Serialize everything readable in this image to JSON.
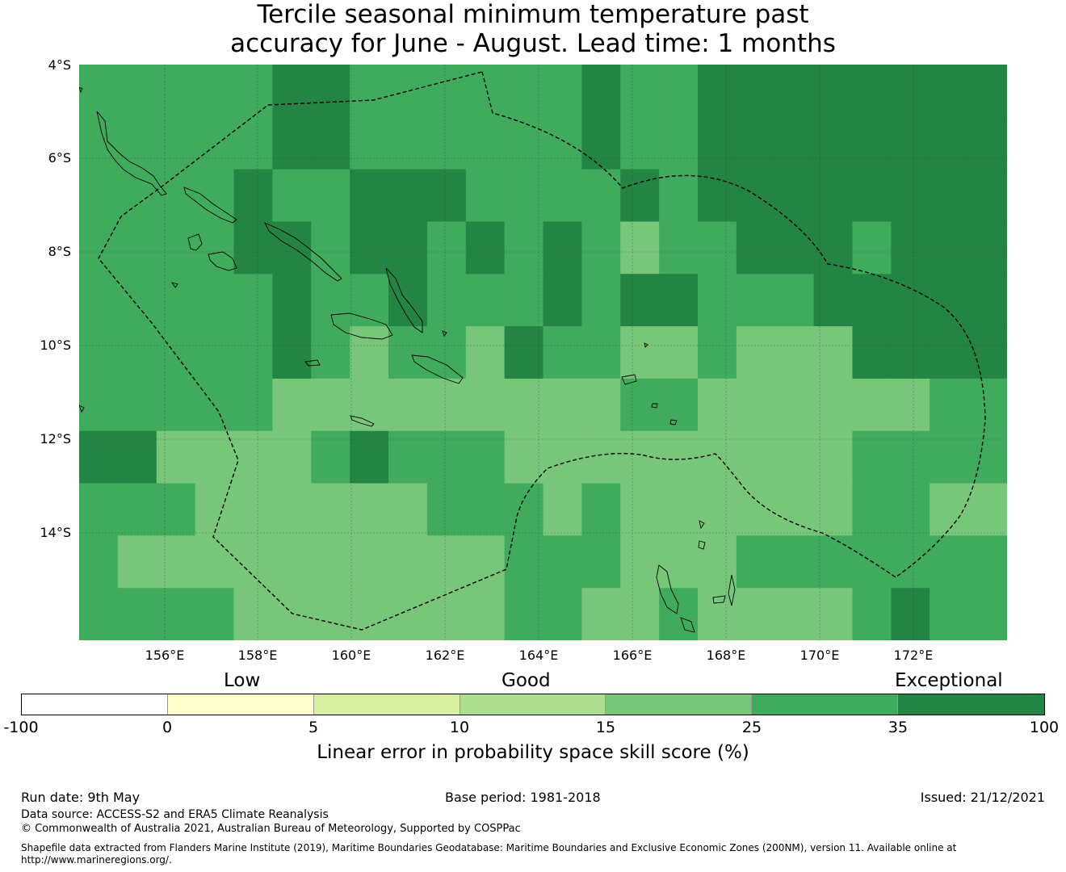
{
  "title": {
    "line1": "Tercile seasonal minimum temperature past",
    "line2": "accuracy for June - August. Lead time: 1 months"
  },
  "map": {
    "lat_labels": [
      "4°S",
      "6°S",
      "8°S",
      "10°S",
      "12°S",
      "14°S"
    ],
    "lon_labels": [
      "156°E",
      "158°E",
      "160°E",
      "162°E",
      "164°E",
      "166°E",
      "168°E",
      "170°E",
      "172°E"
    ],
    "extent": {
      "lon_min": 154.2,
      "lon_max": 174.0,
      "lat_min": -16.3,
      "lat_max": -4.0
    },
    "palette": {
      "1": "#78c679",
      "2": "#41ab5d",
      "3": "#238443"
    },
    "grid_cols": 24,
    "grid_rows": 11,
    "cells": [
      "222223322222232233333333",
      "222223322222232233333333",
      "222232233322223233333333",
      "222233233232321223332333",
      "222223223222323322233333",
      "222223212213221121113333",
      "222221111111112211111122",
      "331111232221111111112222",
      "222111111222121111112211",
      "211111111112221112222222",
      "222211111112211211112322"
    ]
  },
  "colorbar": {
    "categories": [
      "Low",
      "Good",
      "Exceptional"
    ],
    "ticks": [
      "-100",
      "0",
      "5",
      "10",
      "15",
      "25",
      "35",
      "100"
    ],
    "colors": [
      "#ffffff",
      "#ffffcc",
      "#d9f0a3",
      "#addd8e",
      "#78c679",
      "#41ab5d",
      "#238443"
    ],
    "label": "Linear error in probability space skill score (%)"
  },
  "footer": {
    "run_date": "Run date: 9th May",
    "base_period": "Base period: 1981-2018",
    "issued": "Issued: 21/12/2021",
    "data_source": "Data source: ACCESS-S2 and ERA5 Climate Reanalysis",
    "copyright": "© Commonwealth of Australia 2021, Australian Bureau of Meteorology, Supported by COSPPac",
    "shapefile_line1": "Shapefile data extracted from Flanders Marine Institute (2019), Maritime Boundaries Geodatabase: Maritime Boundaries and Exclusive Economic Zones (200NM), version 11. Available online at",
    "shapefile_line2": "http://www.marineregions.org/."
  }
}
